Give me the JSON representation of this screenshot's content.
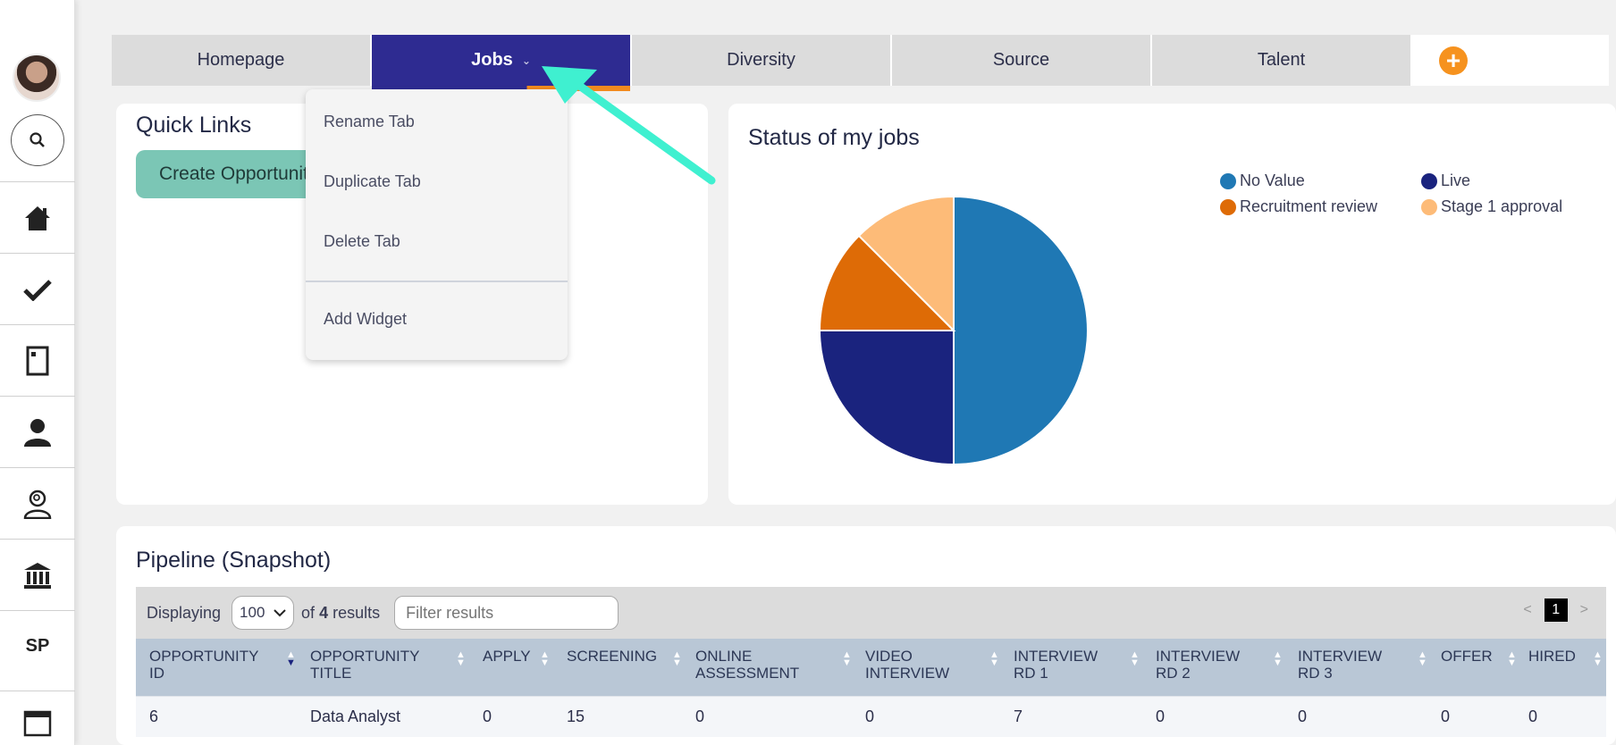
{
  "sidebar": {
    "avatar": "user-avatar",
    "items": [
      {
        "name": "home-icon"
      },
      {
        "name": "check-icon"
      },
      {
        "name": "document-icon"
      },
      {
        "name": "person-icon"
      },
      {
        "name": "candidate-search-icon"
      },
      {
        "name": "bank-icon"
      },
      {
        "name": "sp",
        "label": "SP"
      },
      {
        "name": "calendar-icon"
      }
    ]
  },
  "tabs": [
    {
      "label": "Homepage"
    },
    {
      "label": "Jobs",
      "active": true
    },
    {
      "label": "Diversity"
    },
    {
      "label": "Source"
    },
    {
      "label": "Talent"
    }
  ],
  "tab_menu": {
    "items": [
      "Rename Tab",
      "Duplicate Tab",
      "Delete Tab",
      "Add Widget"
    ]
  },
  "quick_links": {
    "title": "Quick Links",
    "create_button": "Create Opportunity"
  },
  "status_widget": {
    "title": "Status of my jobs",
    "legend": [
      {
        "label": "No Value",
        "color": "#1f78b4"
      },
      {
        "label": "Live",
        "color": "#1a237e"
      },
      {
        "label": "Recruitment review",
        "color": "#de6b06"
      },
      {
        "label": "Stage 1 approval",
        "color": "#fdbb78"
      }
    ]
  },
  "chart_data": {
    "type": "pie",
    "title": "Status of my jobs",
    "categories": [
      "No Value",
      "Live",
      "Recruitment review",
      "Stage 1 approval"
    ],
    "values": [
      50,
      25,
      12.5,
      12.5
    ],
    "colors": [
      "#1f78b4",
      "#1a237e",
      "#de6b06",
      "#fdbb78"
    ],
    "legend": "top-right"
  },
  "pipeline": {
    "title": "Pipeline (Snapshot)",
    "displaying_label": "Displaying",
    "page_size": "100",
    "results_of": "of",
    "results_count": "4",
    "results_label": "results",
    "filter_placeholder": "Filter results",
    "page_prev": "<",
    "page_current": "1",
    "page_next": ">",
    "columns": [
      [
        "OPPORTUNITY",
        "ID"
      ],
      [
        "OPPORTUNITY",
        "TITLE"
      ],
      [
        "APPLY",
        ""
      ],
      [
        "SCREENING",
        ""
      ],
      [
        "ONLINE",
        "ASSESSMENT"
      ],
      [
        "VIDEO",
        "INTERVIEW"
      ],
      [
        "INTERVIEW",
        "RD 1"
      ],
      [
        "INTERVIEW",
        "RD 2"
      ],
      [
        "INTERVIEW",
        "RD 3"
      ],
      [
        "OFFER",
        ""
      ],
      [
        "HIRED",
        ""
      ]
    ],
    "rows": [
      [
        "6",
        "Data Analyst",
        "0",
        "15",
        "0",
        "0",
        "7",
        "0",
        "0",
        "0",
        "0"
      ]
    ]
  },
  "colors": {
    "active_tab": "#2e2b91",
    "accent_orange": "#f6921e",
    "arrow": "#3ff0d0",
    "create_button": "#7bc6b5"
  }
}
